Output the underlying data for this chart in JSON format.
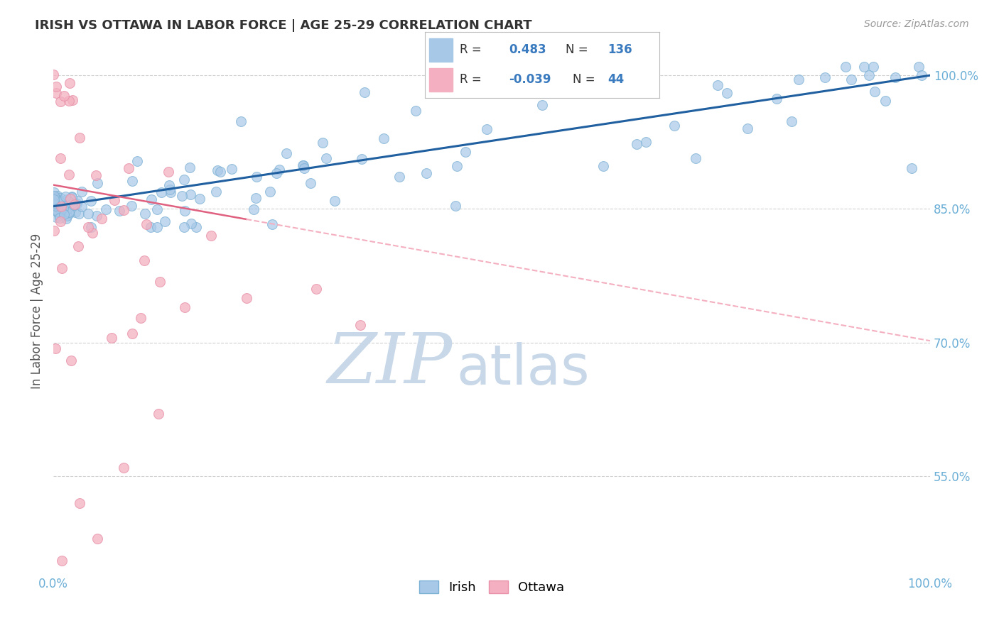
{
  "title": "IRISH VS OTTAWA IN LABOR FORCE | AGE 25-29 CORRELATION CHART",
  "source_text": "Source: ZipAtlas.com",
  "ylabel": "In Labor Force | Age 25-29",
  "watermark_zip": "ZIP",
  "watermark_atlas": "atlas",
  "xlim": [
    0.0,
    1.0
  ],
  "ylim": [
    0.44,
    1.03
  ],
  "yticks": [
    0.55,
    0.7,
    0.85,
    1.0
  ],
  "ytick_labels": [
    "55.0%",
    "70.0%",
    "85.0%",
    "100.0%"
  ],
  "xticks": [
    0.0,
    1.0
  ],
  "xtick_labels": [
    "0.0%",
    "100.0%"
  ],
  "irish_R": 0.483,
  "irish_N": 136,
  "ottawa_R": -0.039,
  "ottawa_N": 44,
  "blue_scatter_color": "#a8c8e8",
  "blue_edge_color": "#7ab0d4",
  "pink_scatter_color": "#f4b0c0",
  "pink_edge_color": "#e890a8",
  "blue_line_color": "#2060a0",
  "pink_solid_color": "#e06080",
  "pink_dash_color": "#f4b0c0",
  "title_color": "#333333",
  "axis_label_color": "#555555",
  "tick_color": "#6baed6",
  "grid_color": "#d0d0d0",
  "legend_text_color": "#333333",
  "legend_value_color": "#3a7abf",
  "watermark_color": "#c8d8e8"
}
